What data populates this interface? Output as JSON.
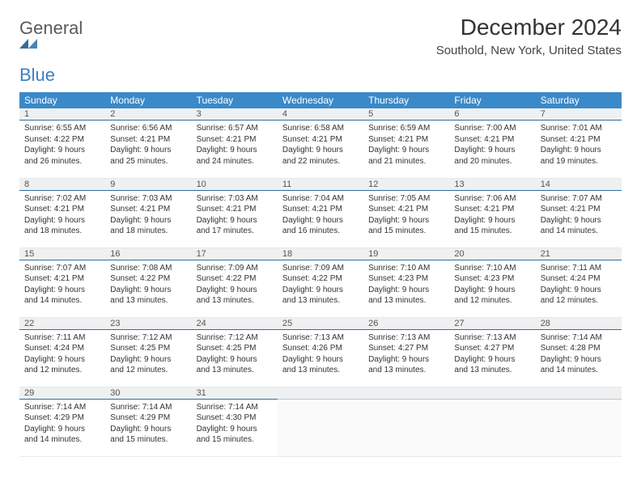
{
  "brand": {
    "general": "General",
    "blue": "Blue",
    "mark_color": "#2f6f9f"
  },
  "header": {
    "title": "December 2024",
    "location": "Southold, New York, United States"
  },
  "calendar": {
    "header_bg": "#3a89c9",
    "header_fg": "#ffffff",
    "daynum_bg": "#eef0f1",
    "daynum_border": "#2f6f9f",
    "days": [
      "Sunday",
      "Monday",
      "Tuesday",
      "Wednesday",
      "Thursday",
      "Friday",
      "Saturday"
    ],
    "weeks": [
      [
        {
          "n": "1",
          "sunrise": "6:55 AM",
          "sunset": "4:22 PM",
          "day_h": 9,
          "day_m": 26
        },
        {
          "n": "2",
          "sunrise": "6:56 AM",
          "sunset": "4:21 PM",
          "day_h": 9,
          "day_m": 25
        },
        {
          "n": "3",
          "sunrise": "6:57 AM",
          "sunset": "4:21 PM",
          "day_h": 9,
          "day_m": 24
        },
        {
          "n": "4",
          "sunrise": "6:58 AM",
          "sunset": "4:21 PM",
          "day_h": 9,
          "day_m": 22
        },
        {
          "n": "5",
          "sunrise": "6:59 AM",
          "sunset": "4:21 PM",
          "day_h": 9,
          "day_m": 21
        },
        {
          "n": "6",
          "sunrise": "7:00 AM",
          "sunset": "4:21 PM",
          "day_h": 9,
          "day_m": 20
        },
        {
          "n": "7",
          "sunrise": "7:01 AM",
          "sunset": "4:21 PM",
          "day_h": 9,
          "day_m": 19
        }
      ],
      [
        {
          "n": "8",
          "sunrise": "7:02 AM",
          "sunset": "4:21 PM",
          "day_h": 9,
          "day_m": 18
        },
        {
          "n": "9",
          "sunrise": "7:03 AM",
          "sunset": "4:21 PM",
          "day_h": 9,
          "day_m": 18
        },
        {
          "n": "10",
          "sunrise": "7:03 AM",
          "sunset": "4:21 PM",
          "day_h": 9,
          "day_m": 17
        },
        {
          "n": "11",
          "sunrise": "7:04 AM",
          "sunset": "4:21 PM",
          "day_h": 9,
          "day_m": 16
        },
        {
          "n": "12",
          "sunrise": "7:05 AM",
          "sunset": "4:21 PM",
          "day_h": 9,
          "day_m": 15
        },
        {
          "n": "13",
          "sunrise": "7:06 AM",
          "sunset": "4:21 PM",
          "day_h": 9,
          "day_m": 15
        },
        {
          "n": "14",
          "sunrise": "7:07 AM",
          "sunset": "4:21 PM",
          "day_h": 9,
          "day_m": 14
        }
      ],
      [
        {
          "n": "15",
          "sunrise": "7:07 AM",
          "sunset": "4:21 PM",
          "day_h": 9,
          "day_m": 14
        },
        {
          "n": "16",
          "sunrise": "7:08 AM",
          "sunset": "4:22 PM",
          "day_h": 9,
          "day_m": 13
        },
        {
          "n": "17",
          "sunrise": "7:09 AM",
          "sunset": "4:22 PM",
          "day_h": 9,
          "day_m": 13
        },
        {
          "n": "18",
          "sunrise": "7:09 AM",
          "sunset": "4:22 PM",
          "day_h": 9,
          "day_m": 13
        },
        {
          "n": "19",
          "sunrise": "7:10 AM",
          "sunset": "4:23 PM",
          "day_h": 9,
          "day_m": 13
        },
        {
          "n": "20",
          "sunrise": "7:10 AM",
          "sunset": "4:23 PM",
          "day_h": 9,
          "day_m": 12
        },
        {
          "n": "21",
          "sunrise": "7:11 AM",
          "sunset": "4:24 PM",
          "day_h": 9,
          "day_m": 12
        }
      ],
      [
        {
          "n": "22",
          "sunrise": "7:11 AM",
          "sunset": "4:24 PM",
          "day_h": 9,
          "day_m": 12
        },
        {
          "n": "23",
          "sunrise": "7:12 AM",
          "sunset": "4:25 PM",
          "day_h": 9,
          "day_m": 12
        },
        {
          "n": "24",
          "sunrise": "7:12 AM",
          "sunset": "4:25 PM",
          "day_h": 9,
          "day_m": 13
        },
        {
          "n": "25",
          "sunrise": "7:13 AM",
          "sunset": "4:26 PM",
          "day_h": 9,
          "day_m": 13
        },
        {
          "n": "26",
          "sunrise": "7:13 AM",
          "sunset": "4:27 PM",
          "day_h": 9,
          "day_m": 13
        },
        {
          "n": "27",
          "sunrise": "7:13 AM",
          "sunset": "4:27 PM",
          "day_h": 9,
          "day_m": 13
        },
        {
          "n": "28",
          "sunrise": "7:14 AM",
          "sunset": "4:28 PM",
          "day_h": 9,
          "day_m": 14
        }
      ],
      [
        {
          "n": "29",
          "sunrise": "7:14 AM",
          "sunset": "4:29 PM",
          "day_h": 9,
          "day_m": 14
        },
        {
          "n": "30",
          "sunrise": "7:14 AM",
          "sunset": "4:29 PM",
          "day_h": 9,
          "day_m": 15
        },
        {
          "n": "31",
          "sunrise": "7:14 AM",
          "sunset": "4:30 PM",
          "day_h": 9,
          "day_m": 15
        },
        null,
        null,
        null,
        null
      ]
    ]
  },
  "labels": {
    "sunrise_prefix": "Sunrise: ",
    "sunset_prefix": "Sunset: ",
    "daylight_prefix": "Daylight: ",
    "hours_word": " hours",
    "and_word": "and ",
    "minutes_word": " minutes."
  }
}
